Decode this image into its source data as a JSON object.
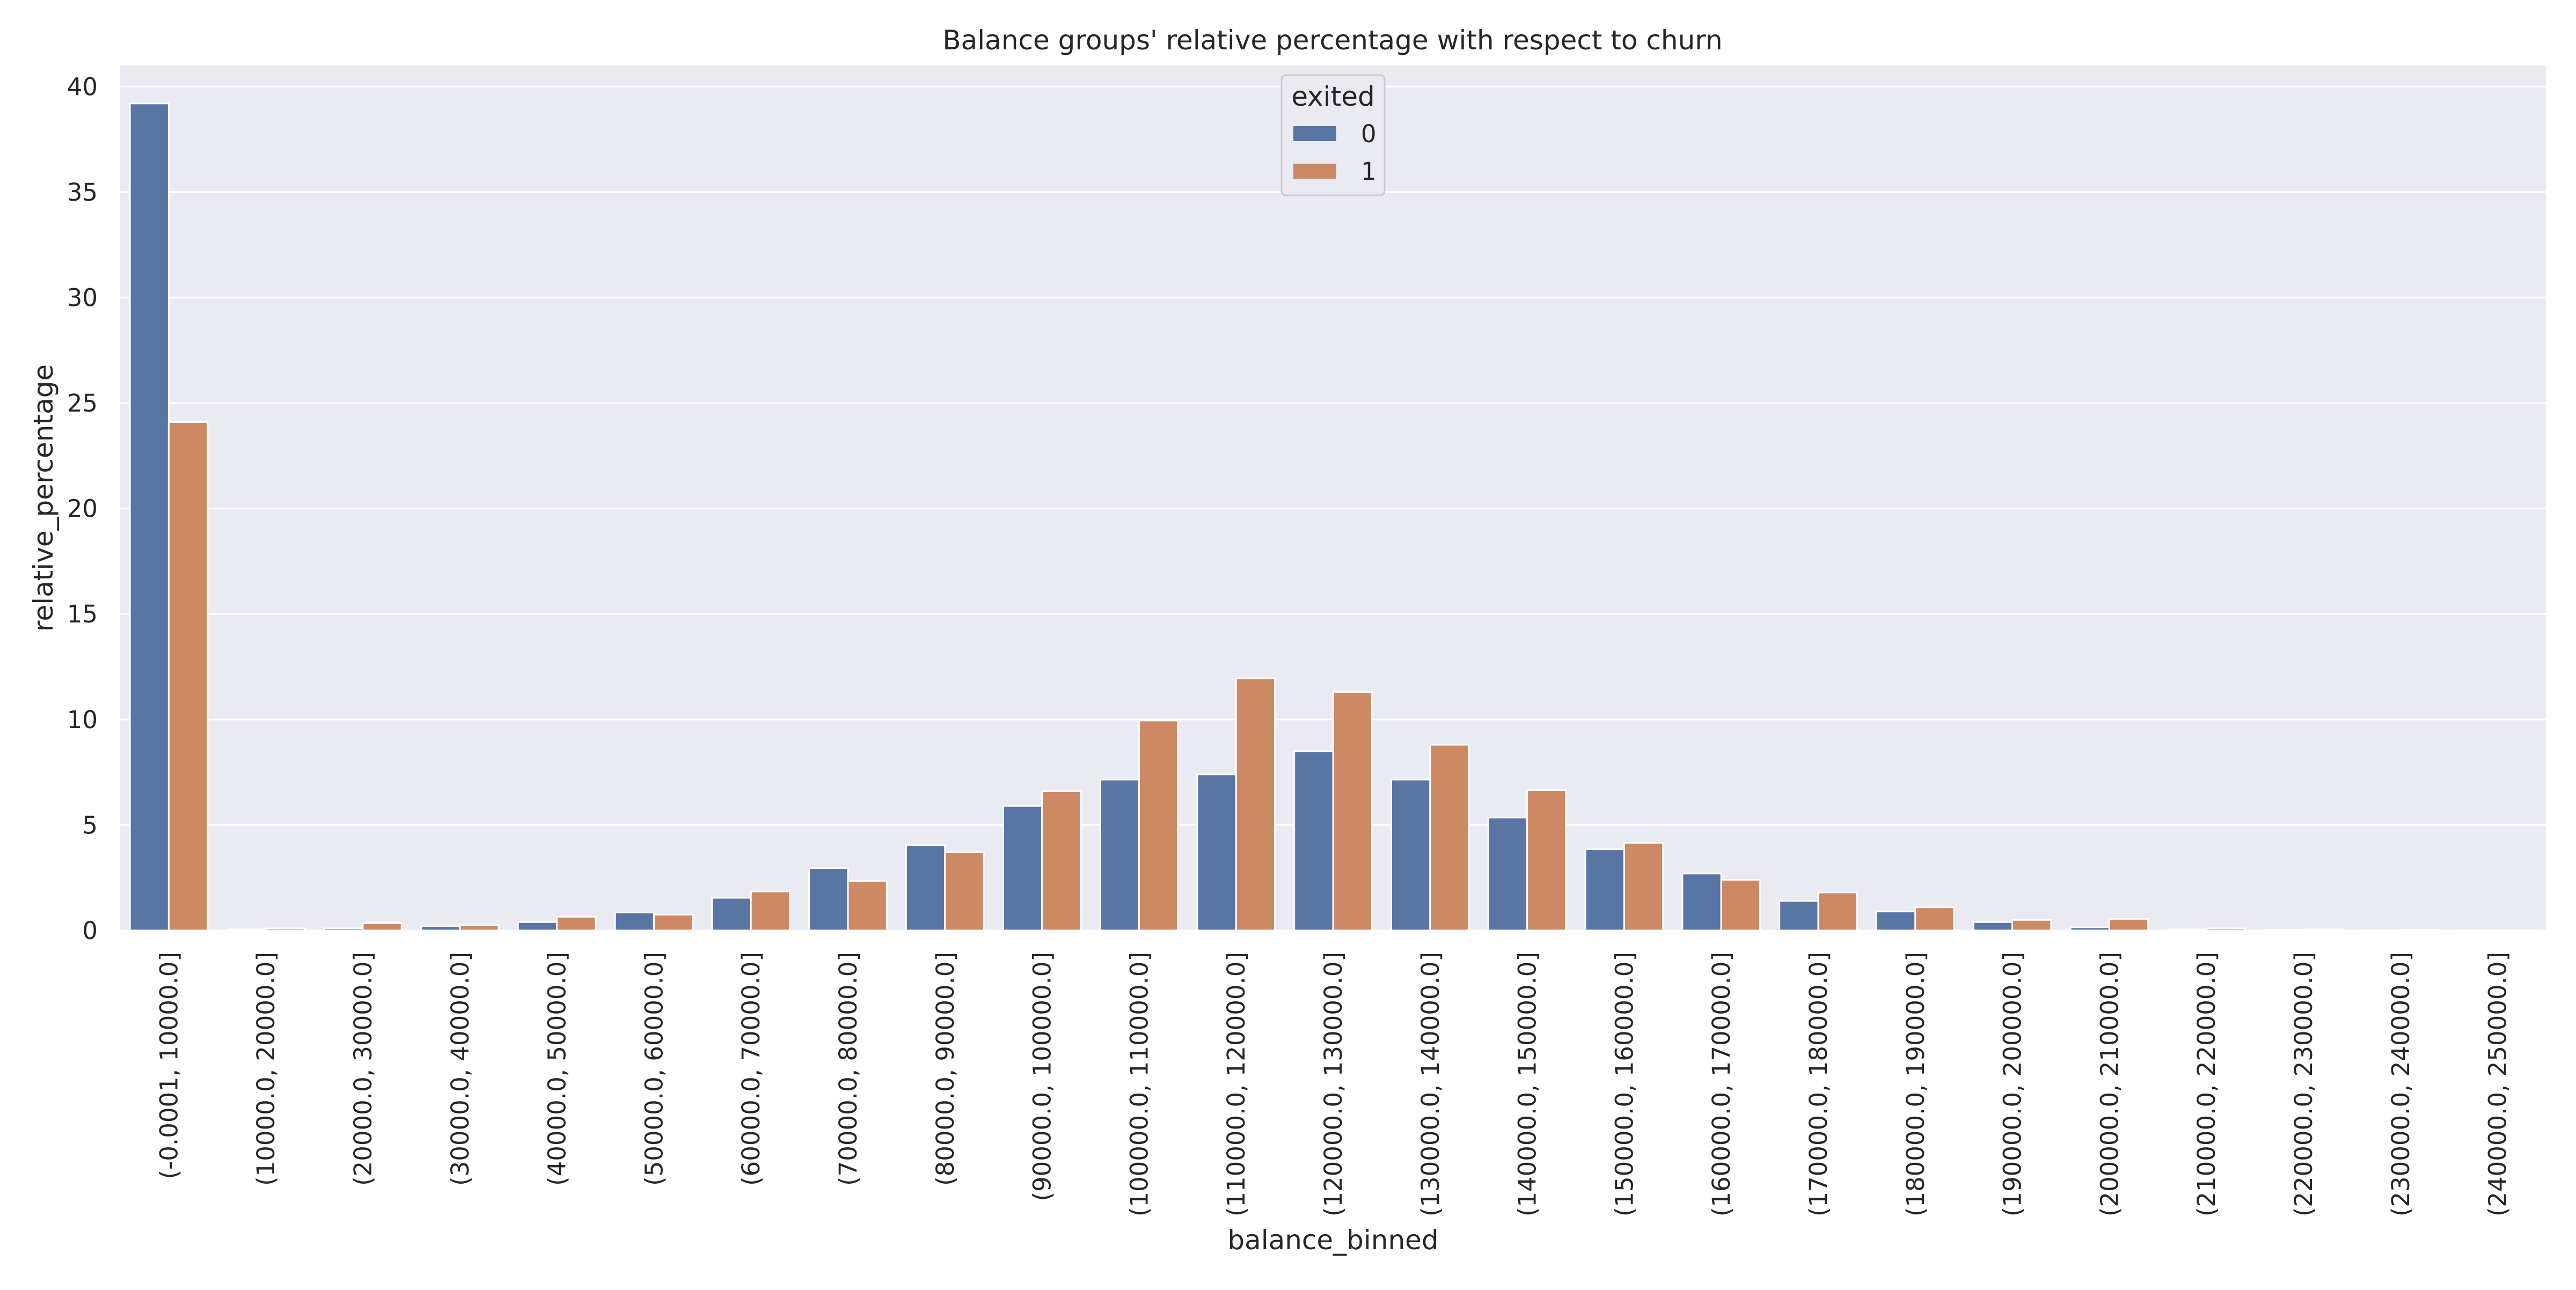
{
  "chart_data": {
    "type": "bar",
    "title": "Balance groups' relative percentage with respect to churn",
    "xlabel": "balance_binned",
    "ylabel": "relative_percentage",
    "ylim": [
      0,
      41
    ],
    "yticks": [
      0,
      5,
      10,
      15,
      20,
      25,
      30,
      35,
      40
    ],
    "grid": true,
    "legend": {
      "title": "exited",
      "placement": "top-center"
    },
    "categories": [
      "(-0.0001, 10000.0]",
      "(10000.0, 20000.0]",
      "(20000.0, 30000.0]",
      "(30000.0, 40000.0]",
      "(40000.0, 50000.0]",
      "(50000.0, 60000.0]",
      "(60000.0, 70000.0]",
      "(70000.0, 80000.0]",
      "(80000.0, 90000.0]",
      "(90000.0, 100000.0]",
      "(100000.0, 110000.0]",
      "(110000.0, 120000.0]",
      "(120000.0, 130000.0]",
      "(130000.0, 140000.0]",
      "(140000.0, 150000.0]",
      "(150000.0, 160000.0]",
      "(160000.0, 170000.0]",
      "(170000.0, 180000.0]",
      "(180000.0, 190000.0]",
      "(190000.0, 200000.0]",
      "(200000.0, 210000.0]",
      "(210000.0, 220000.0]",
      "(220000.0, 230000.0]",
      "(230000.0, 240000.0]",
      "(240000.0, 250000.0]"
    ],
    "series": [
      {
        "name": "0",
        "color": "#5975a4",
        "values": [
          39.2,
          0.05,
          0.1,
          0.2,
          0.4,
          0.85,
          1.55,
          2.95,
          4.05,
          5.9,
          7.15,
          7.4,
          8.5,
          7.15,
          5.35,
          3.85,
          2.7,
          1.4,
          0.9,
          0.4,
          0.15,
          0.05,
          0.03,
          0.01,
          0.01
        ]
      },
      {
        "name": "1",
        "color": "#cc8963",
        "values": [
          24.1,
          0.1,
          0.35,
          0.25,
          0.65,
          0.75,
          1.85,
          2.35,
          3.7,
          6.6,
          9.95,
          11.95,
          11.3,
          8.8,
          6.65,
          4.15,
          2.4,
          1.8,
          1.1,
          0.5,
          0.55,
          0.1,
          0.05,
          0.03,
          0.02
        ]
      }
    ]
  }
}
